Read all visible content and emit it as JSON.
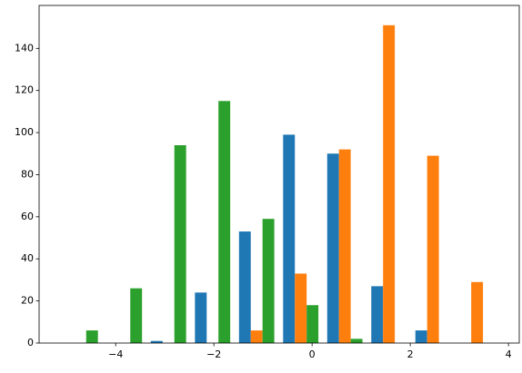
{
  "chart_data": {
    "type": "histogram",
    "bins": [
      -5.17,
      -4.272,
      -3.374,
      -2.476,
      -1.578,
      -0.68,
      0.218,
      1.116,
      2.014,
      2.912,
      3.81
    ],
    "series": [
      {
        "color": "#1f77b4",
        "values": [
          0,
          0,
          1,
          24,
          53,
          99,
          90,
          27,
          6,
          0
        ]
      },
      {
        "color": "#ff7f0e",
        "values": [
          0,
          0,
          0,
          0,
          6,
          33,
          92,
          151,
          89,
          29
        ]
      },
      {
        "color": "#2ca02c",
        "values": [
          6,
          26,
          94,
          115,
          59,
          18,
          2,
          0,
          0,
          0
        ]
      }
    ],
    "xlim": [
      -5.56,
      4.22
    ],
    "xticks": [
      {
        "value": -4,
        "label": "−4"
      },
      {
        "value": -2,
        "label": "−2"
      },
      0,
      2,
      4
    ],
    "ylim": [
      0,
      160.4
    ],
    "yticks": [
      0,
      20,
      40,
      60,
      80,
      100,
      120,
      140
    ],
    "grid": false
  }
}
